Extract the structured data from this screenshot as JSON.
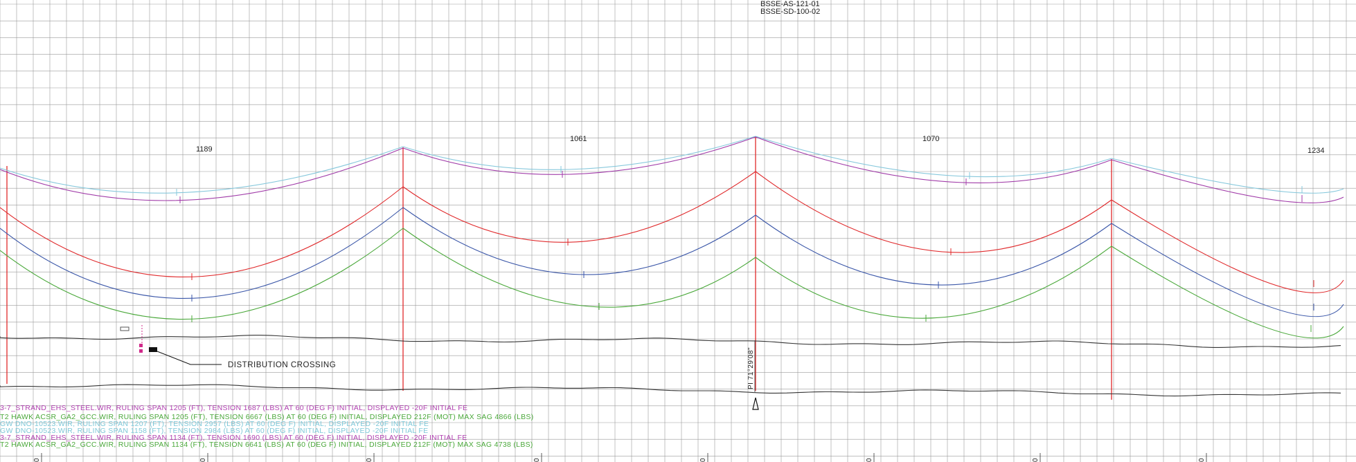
{
  "references": [
    "BSSE-AS-121-01",
    "BSSE-SD-100-02"
  ],
  "span_labels": [
    "1189",
    "1061",
    "1070",
    "1234"
  ],
  "callout": "DISTRIBUTION CROSSING",
  "pi_label": "PI 71°29'08\"",
  "legend": [
    {
      "text": "3-7_STRAND_EHS_STEEL.WIR, RULING SPAN 1205 (FT), TENSION 1687 (LBS) AT 60 (DEG F) INITIAL, DISPLAYED -20F INITIAL FE",
      "color": "#b040b0"
    },
    {
      "text": "T2 HAWK ACSR_GA2_GCC.WIR, RULING SPAN 1205 (FT), TENSION 6667 (LBS) AT 60 (DEG F) INITIAL, DISPLAYED 212F (MOT) MAX SAG 4866 (LBS)",
      "color": "#4aa83a"
    },
    {
      "text": "GW DNO-10523.WIR, RULING SPAN 1207 (FT), TENSION 2957 (LBS) AT 60 (DEG F) INITIAL, DISPLAYED -20F INITIAL FE",
      "color": "#7ec8d8"
    },
    {
      "text": "GW DNO-10523.WIR, RULING SPAN 1158 (FT), TENSION 2984 (LBS) AT 60 (DEG F) INITIAL, DISPLAYED -20F INITIAL FE",
      "color": "#7ec8d8"
    },
    {
      "text": "3-7_STRAND_EHS_STEEL.WIR, RULING SPAN 1134 (FT), TENSION 1690 (LBS) AT 60 (DEG F) INITIAL, DISPLAYED -20F INITIAL FE",
      "color": "#b040b0"
    },
    {
      "text": "T2 HAWK ACSR_GA2_GCC.WIR, RULING SPAN 1134 (FT), TENSION 6641 (LBS) AT 60 (DEG F) INITIAL, DISPLAYED 212F (MOT) MAX SAG 4738 (LBS)",
      "color": "#4aa83a"
    }
  ],
  "station_ticks": [
    "0",
    "0",
    "0",
    "0",
    "0",
    "0",
    "0",
    "0"
  ],
  "colors": {
    "grid": "#9a9a9a",
    "shield_magenta": "#a03aa8",
    "shield_cyan": "#86c8dc",
    "conductor_red": "#e0282a",
    "conductor_blue": "#3a56a8",
    "conductor_green": "#4aa83a",
    "ground": "#333333",
    "structure": "#e0282a"
  }
}
